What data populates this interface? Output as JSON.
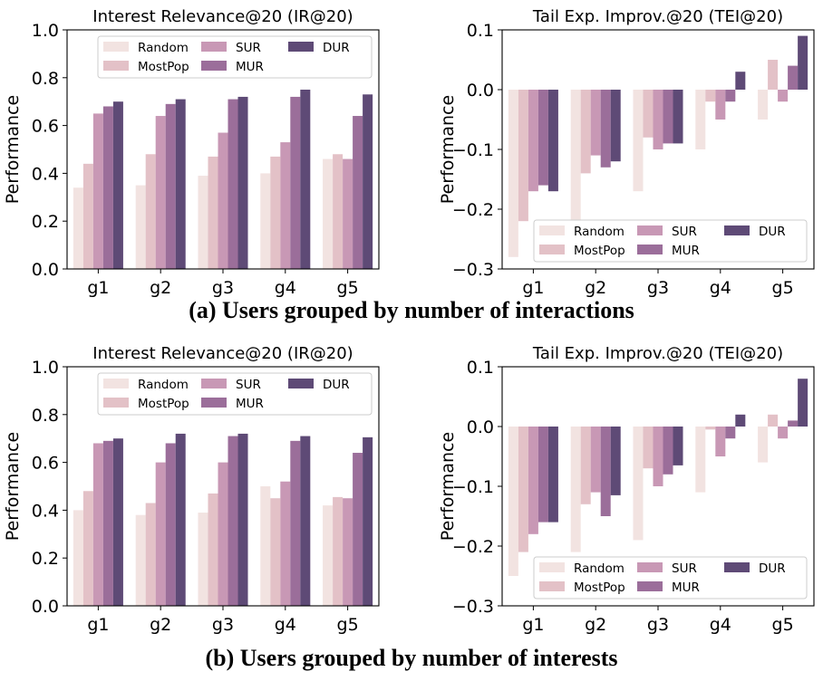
{
  "captions": {
    "a": "(a) Users grouped by number of interactions",
    "b": "(b) Users grouped by number of interests"
  },
  "series_colors": {
    "Random": "#f2e3e1",
    "MostPop": "#e3c1c7",
    "SUR": "#c898b5",
    "MUR": "#9b6e9a",
    "DUR": "#5e4a76"
  },
  "chart_data": [
    {
      "type": "bar",
      "title": "Interest Relevance@20 (IR@20)",
      "xlabel": "",
      "ylabel": "Performance",
      "categories": [
        "g1",
        "g2",
        "g3",
        "g4",
        "g5"
      ],
      "ylim": [
        0,
        1.0
      ],
      "yticks": [
        0.0,
        0.2,
        0.4,
        0.6,
        0.8,
        1.0
      ],
      "ytick_labels": [
        "0.0",
        "0.2",
        "0.4",
        "0.6",
        "0.8",
        "1.0"
      ],
      "legend_position": "top-right",
      "series": [
        {
          "name": "Random",
          "values": [
            0.34,
            0.35,
            0.39,
            0.4,
            0.46
          ]
        },
        {
          "name": "MostPop",
          "values": [
            0.44,
            0.48,
            0.47,
            0.47,
            0.48
          ]
        },
        {
          "name": "SUR",
          "values": [
            0.65,
            0.64,
            0.57,
            0.53,
            0.46
          ]
        },
        {
          "name": "MUR",
          "values": [
            0.68,
            0.69,
            0.71,
            0.72,
            0.64
          ]
        },
        {
          "name": "DUR",
          "values": [
            0.7,
            0.71,
            0.72,
            0.75,
            0.73
          ]
        }
      ]
    },
    {
      "type": "bar",
      "title": "Tail Exp. Improv.@20 (TEI@20)",
      "xlabel": "",
      "ylabel": "Performance",
      "categories": [
        "g1",
        "g2",
        "g3",
        "g4",
        "g5"
      ],
      "ylim": [
        -0.3,
        0.1
      ],
      "yticks": [
        -0.3,
        -0.2,
        -0.1,
        0.0,
        0.1
      ],
      "ytick_labels": [
        "−0.3",
        "−0.2",
        "−0.1",
        "0.0",
        "0.1"
      ],
      "legend_position": "bottom-right",
      "series": [
        {
          "name": "Random",
          "values": [
            -0.28,
            -0.22,
            -0.17,
            -0.1,
            -0.05
          ]
        },
        {
          "name": "MostPop",
          "values": [
            -0.22,
            -0.14,
            -0.08,
            -0.02,
            0.05
          ]
        },
        {
          "name": "SUR",
          "values": [
            -0.17,
            -0.11,
            -0.1,
            -0.05,
            -0.02
          ]
        },
        {
          "name": "MUR",
          "values": [
            -0.16,
            -0.13,
            -0.09,
            -0.02,
            0.04
          ]
        },
        {
          "name": "DUR",
          "values": [
            -0.17,
            -0.12,
            -0.09,
            0.03,
            0.09
          ]
        }
      ]
    },
    {
      "type": "bar",
      "title": "Interest Relevance@20 (IR@20)",
      "xlabel": "",
      "ylabel": "Performance",
      "categories": [
        "g1",
        "g2",
        "g3",
        "g4",
        "g5"
      ],
      "ylim": [
        0,
        1.0
      ],
      "yticks": [
        0.0,
        0.2,
        0.4,
        0.6,
        0.8,
        1.0
      ],
      "ytick_labels": [
        "0.0",
        "0.2",
        "0.4",
        "0.6",
        "0.8",
        "1.0"
      ],
      "legend_position": "top-right",
      "series": [
        {
          "name": "Random",
          "values": [
            0.4,
            0.38,
            0.39,
            0.5,
            0.42
          ]
        },
        {
          "name": "MostPop",
          "values": [
            0.48,
            0.43,
            0.47,
            0.45,
            0.455
          ]
        },
        {
          "name": "SUR",
          "values": [
            0.68,
            0.6,
            0.6,
            0.52,
            0.45
          ]
        },
        {
          "name": "MUR",
          "values": [
            0.69,
            0.68,
            0.71,
            0.69,
            0.64
          ]
        },
        {
          "name": "DUR",
          "values": [
            0.7,
            0.72,
            0.72,
            0.71,
            0.705
          ]
        }
      ]
    },
    {
      "type": "bar",
      "title": "Tail Exp. Improv.@20 (TEI@20)",
      "xlabel": "",
      "ylabel": "Performance",
      "categories": [
        "g1",
        "g2",
        "g3",
        "g4",
        "g5"
      ],
      "ylim": [
        -0.3,
        0.1
      ],
      "yticks": [
        -0.3,
        -0.2,
        -0.1,
        0.0,
        0.1
      ],
      "ytick_labels": [
        "−0.3",
        "−0.2",
        "−0.1",
        "0.0",
        "0.1"
      ],
      "legend_position": "bottom-right",
      "series": [
        {
          "name": "Random",
          "values": [
            -0.25,
            -0.21,
            -0.19,
            -0.11,
            -0.06
          ]
        },
        {
          "name": "MostPop",
          "values": [
            -0.21,
            -0.13,
            -0.07,
            -0.005,
            0.02
          ]
        },
        {
          "name": "SUR",
          "values": [
            -0.18,
            -0.11,
            -0.1,
            -0.05,
            -0.02
          ]
        },
        {
          "name": "MUR",
          "values": [
            -0.16,
            -0.15,
            -0.08,
            -0.02,
            0.01
          ]
        },
        {
          "name": "DUR",
          "values": [
            -0.16,
            -0.115,
            -0.065,
            0.02,
            0.08
          ]
        }
      ]
    }
  ]
}
